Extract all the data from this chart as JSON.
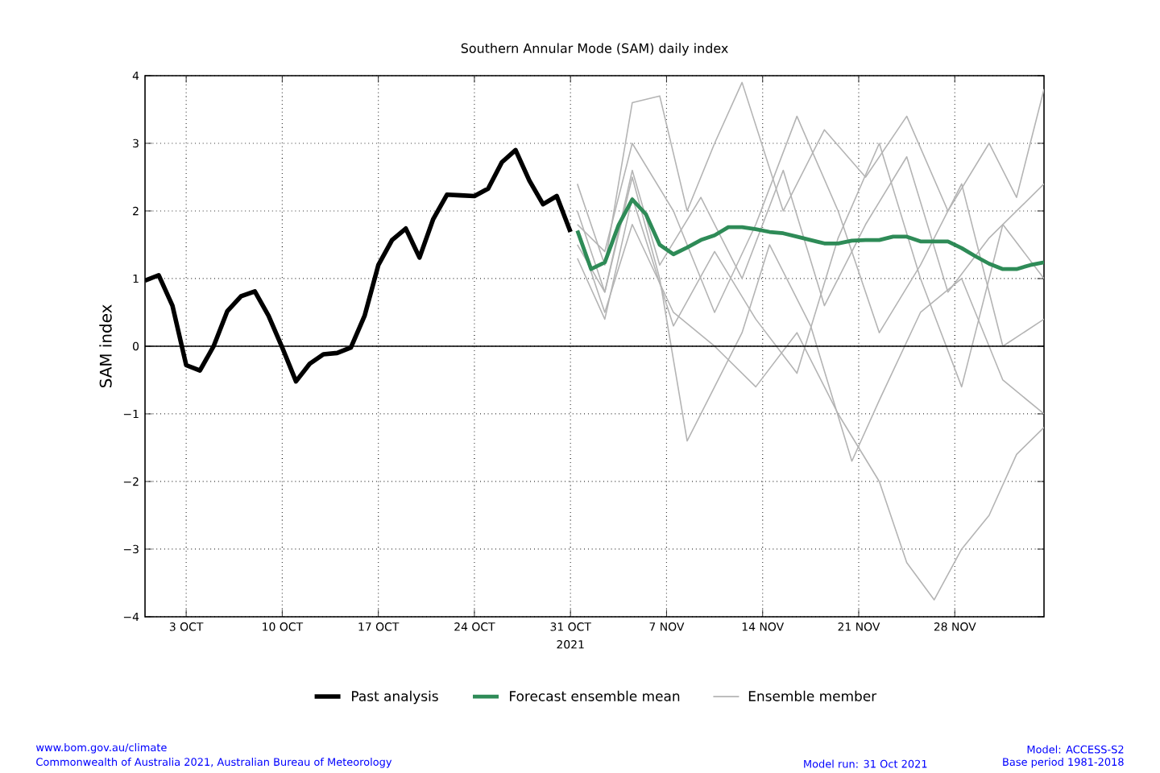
{
  "chart_data": {
    "type": "line",
    "title": "Southern Annular Mode (SAM) daily index",
    "ylabel": "SAM index",
    "xlabel": "2021",
    "xlim": [
      "2021-09-30",
      "2021-12-04T12:00"
    ],
    "xticks": [
      {
        "value": "2021-10-03",
        "label": "3 OCT"
      },
      {
        "value": "2021-10-10",
        "label": "10 OCT"
      },
      {
        "value": "2021-10-17",
        "label": "17 OCT"
      },
      {
        "value": "2021-10-24",
        "label": "24 OCT"
      },
      {
        "value": "2021-10-31",
        "label": "31 OCT"
      },
      {
        "value": "2021-11-07",
        "label": "7 NOV"
      },
      {
        "value": "2021-11-14",
        "label": "14 NOV"
      },
      {
        "value": "2021-11-21",
        "label": "21 NOV"
      },
      {
        "value": "2021-11-28",
        "label": "28 NOV"
      }
    ],
    "ylim": [
      -4,
      4
    ],
    "yticks": [
      {
        "value": -4,
        "label": "−4"
      },
      {
        "value": -3,
        "label": "−3"
      },
      {
        "value": -2,
        "label": "−2"
      },
      {
        "value": -1,
        "label": "−1"
      },
      0,
      1,
      2,
      3,
      4
    ],
    "grid": true,
    "legend": "bottom",
    "ref_lines": [
      {
        "axis": "y",
        "value": 0,
        "color": "#000000"
      }
    ],
    "series": [
      {
        "name": "Past analysis",
        "color": "#000000",
        "x": [
          "2021-09-30",
          "2021-10-01",
          "2021-10-02",
          "2021-10-03",
          "2021-10-04",
          "2021-10-05",
          "2021-10-06",
          "2021-10-07",
          "2021-10-08",
          "2021-10-09",
          "2021-10-10",
          "2021-10-11",
          "2021-10-12",
          "2021-10-13",
          "2021-10-14",
          "2021-10-15",
          "2021-10-16",
          "2021-10-17",
          "2021-10-18",
          "2021-10-19",
          "2021-10-20",
          "2021-10-21",
          "2021-10-22",
          "2021-10-23",
          "2021-10-24",
          "2021-10-25",
          "2021-10-26",
          "2021-10-27",
          "2021-10-28",
          "2021-10-29",
          "2021-10-30",
          "2021-10-31"
        ],
        "values": [
          0.97,
          1.05,
          0.6,
          -0.28,
          -0.36,
          0.0,
          0.52,
          0.74,
          0.81,
          0.45,
          -0.02,
          -0.52,
          -0.26,
          -0.12,
          -0.1,
          -0.02,
          0.45,
          1.2,
          1.57,
          1.74,
          1.31,
          1.88,
          2.24,
          2.23,
          2.22,
          2.33,
          2.72,
          2.9,
          2.45,
          2.1,
          2.22,
          1.69
        ]
      },
      {
        "name": "Forecast ensemble mean",
        "color": "#2e8b57",
        "x": [
          "2021-10-31T12:00",
          "2021-11-01T12:00",
          "2021-11-02T12:00",
          "2021-11-03T12:00",
          "2021-11-04T12:00",
          "2021-11-05T12:00",
          "2021-11-06T12:00",
          "2021-11-07T12:00",
          "2021-11-08T12:00",
          "2021-11-09T12:00",
          "2021-11-10T12:00",
          "2021-11-11T12:00",
          "2021-11-12T12:00",
          "2021-11-13T12:00",
          "2021-11-14T12:00",
          "2021-11-15T12:00",
          "2021-11-16T12:00",
          "2021-11-17T12:00",
          "2021-11-18T12:00",
          "2021-11-19T12:00",
          "2021-11-20T12:00",
          "2021-11-21T12:00",
          "2021-11-22T12:00",
          "2021-11-23T12:00",
          "2021-11-24T12:00",
          "2021-11-25T12:00",
          "2021-11-26T12:00",
          "2021-11-27T12:00",
          "2021-11-28T12:00",
          "2021-11-29T12:00",
          "2021-11-30T12:00",
          "2021-12-01T12:00",
          "2021-12-02T12:00",
          "2021-12-03T12:00",
          "2021-12-04T12:00"
        ],
        "values": [
          1.71,
          1.14,
          1.24,
          1.79,
          2.17,
          1.95,
          1.5,
          1.36,
          1.46,
          1.57,
          1.64,
          1.76,
          1.76,
          1.73,
          1.69,
          1.67,
          1.62,
          1.57,
          1.52,
          1.52,
          1.56,
          1.57,
          1.57,
          1.62,
          1.62,
          1.55,
          1.55,
          1.55,
          1.45,
          1.33,
          1.22,
          1.14,
          1.14,
          1.2,
          1.24
        ]
      },
      {
        "name": "Ensemble member",
        "color": "#b4b4b4",
        "x": [
          "2021-10-31T12:00",
          "2021-11-02T12:00",
          "2021-11-04T12:00",
          "2021-11-07T12:00",
          "2021-11-10T12:00",
          "2021-11-13T12:00",
          "2021-11-16T12:00",
          "2021-11-19T12:00",
          "2021-11-22T12:00",
          "2021-11-24T12:00",
          "2021-11-26T12:00",
          "2021-11-28T12:00",
          "2021-11-30T12:00",
          "2021-12-02T12:00",
          "2021-12-04T12:00"
        ],
        "values": [
          1.7,
          0.5,
          1.8,
          0.5,
          0.0,
          -0.6,
          0.2,
          -1.0,
          -2.0,
          -3.2,
          -3.75,
          -3.0,
          -2.5,
          -1.6,
          -1.2
        ]
      },
      {
        "color": "#b4b4b4",
        "x": [
          "2021-10-31T12:00",
          "2021-11-02T12:00",
          "2021-11-04T12:00",
          "2021-11-06T12:00",
          "2021-11-08T12:00",
          "2021-11-10T12:00",
          "2021-11-12T12:00",
          "2021-11-14T12:00",
          "2021-11-17T12:00",
          "2021-11-20T12:00",
          "2021-11-22T12:00",
          "2021-11-25T12:00",
          "2021-11-28T12:00",
          "2021-12-01T12:00",
          "2021-12-04T12:00"
        ],
        "values": [
          2.0,
          0.8,
          2.5,
          1.0,
          -1.4,
          -0.6,
          0.2,
          1.5,
          0.3,
          -1.7,
          -0.8,
          0.5,
          1.0,
          -0.5,
          -1.0
        ]
      },
      {
        "color": "#b4b4b4",
        "x": [
          "2021-10-31T12:00",
          "2021-11-02T12:00",
          "2021-11-04T12:00",
          "2021-11-06T12:00",
          "2021-11-08T12:00",
          "2021-11-10T12:00",
          "2021-11-12T12:00",
          "2021-11-15T12:00",
          "2021-11-18T12:00",
          "2021-11-21T12:00",
          "2021-11-24T12:00",
          "2021-11-27T12:00",
          "2021-11-30T12:00",
          "2021-12-02T12:00",
          "2021-12-04T12:00"
        ],
        "values": [
          2.4,
          1.2,
          3.6,
          3.7,
          2.0,
          3.0,
          3.9,
          2.0,
          3.2,
          2.5,
          3.4,
          2.0,
          3.0,
          2.2,
          3.8
        ]
      },
      {
        "color": "#b4b4b4",
        "x": [
          "2021-10-31T12:00",
          "2021-11-02T12:00",
          "2021-11-04T12:00",
          "2021-11-06T12:00",
          "2021-11-09T12:00",
          "2021-11-12T12:00",
          "2021-11-15T12:00",
          "2021-11-18T12:00",
          "2021-11-21T12:00",
          "2021-11-24T12:00",
          "2021-11-27T12:00",
          "2021-11-30T12:00",
          "2021-12-04T12:00"
        ],
        "values": [
          1.5,
          0.8,
          2.6,
          1.2,
          2.2,
          1.0,
          2.6,
          0.6,
          1.8,
          2.8,
          0.8,
          1.6,
          2.4
        ]
      },
      {
        "color": "#b4b4b4",
        "x": [
          "2021-10-31T12:00",
          "2021-11-02T12:00",
          "2021-11-04T12:00",
          "2021-11-07T12:00",
          "2021-11-10T12:00",
          "2021-11-13T12:00",
          "2021-11-16T12:00",
          "2021-11-19T12:00",
          "2021-11-22T12:00",
          "2021-11-25T12:00",
          "2021-11-28T12:00",
          "2021-12-01T12:00",
          "2021-12-04T12:00"
        ],
        "values": [
          1.8,
          1.4,
          3.0,
          2.0,
          0.5,
          1.8,
          3.4,
          2.0,
          0.2,
          1.2,
          2.4,
          0.0,
          0.4
        ]
      },
      {
        "color": "#b4b4b4",
        "x": [
          "2021-10-31T12:00",
          "2021-11-02T12:00",
          "2021-11-04T12:00",
          "2021-11-07T12:00",
          "2021-11-10T12:00",
          "2021-11-13T12:00",
          "2021-11-16T12:00",
          "2021-11-19T12:00",
          "2021-11-22T12:00",
          "2021-11-25T12:00",
          "2021-11-28T12:00",
          "2021-12-01T12:00",
          "2021-12-04T12:00"
        ],
        "values": [
          1.3,
          0.4,
          2.2,
          0.3,
          1.4,
          0.4,
          -0.4,
          1.6,
          3.0,
          1.0,
          -0.6,
          1.8,
          1.0
        ]
      }
    ],
    "annotations": [
      "www.bom.gov.au/climate",
      "Commonwealth of Australia 2021, Australian Bureau of Meteorology",
      "Model run: 31 Oct 2021",
      "Model: ACCESS-S2",
      "Base period 1981-2018"
    ]
  }
}
